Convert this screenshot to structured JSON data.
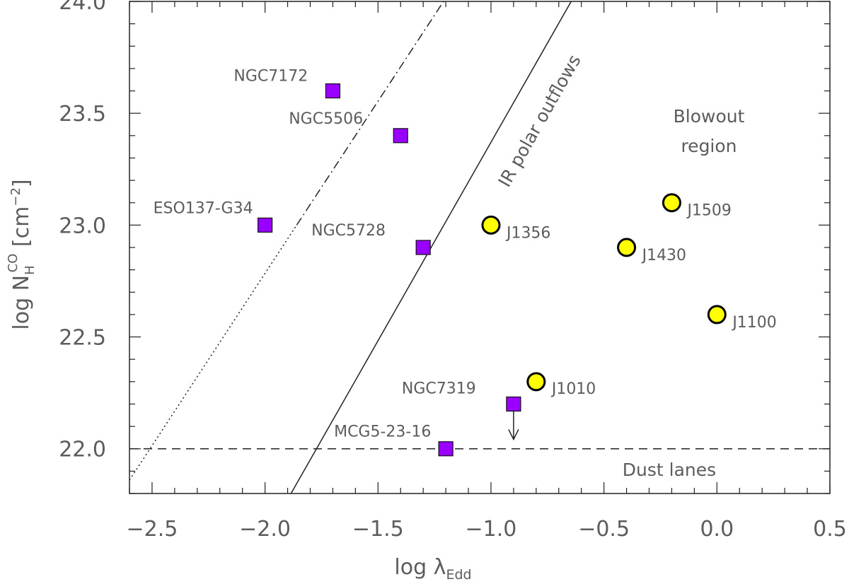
{
  "chart_data": {
    "type": "scatter",
    "xlabel": {
      "main": "log λ",
      "sub": "Edd"
    },
    "ylabel": {
      "main": "log N",
      "sub": "H",
      "sup": "CO",
      "unit": " [cm",
      "unit_sup": "−2",
      "unit_close": "]"
    },
    "xlim": [
      -2.6,
      0.5
    ],
    "ylim": [
      21.8,
      24.0
    ],
    "x_ticks": [
      -2.5,
      -2.0,
      -1.5,
      -1.0,
      -0.5,
      0.0,
      0.5
    ],
    "x_tick_labels": [
      "−2.5",
      "−2.0",
      "−1.5",
      "−1.0",
      "−0.5",
      "0.0",
      "0.5"
    ],
    "y_ticks": [
      22.0,
      22.5,
      23.0,
      23.5,
      24.0
    ],
    "y_tick_labels": [
      "22.0",
      "22.5",
      "23.0",
      "23.5",
      "24.0"
    ],
    "grid": false,
    "series": [
      {
        "marker": "square",
        "color": "#9900ff",
        "points": [
          {
            "label": "NGC7172",
            "x": -1.7,
            "y": 23.6
          },
          {
            "label": "NGC5506",
            "x": -1.4,
            "y": 23.4
          },
          {
            "label": "ESO137-G34",
            "x": -2.0,
            "y": 23.0
          },
          {
            "label": "NGC5728",
            "x": -1.3,
            "y": 22.9
          },
          {
            "label": "NGC7319",
            "x": -0.9,
            "y": 22.2,
            "upper_limit": true
          },
          {
            "label": "MCG5-23-16",
            "x": -1.2,
            "y": 22.0
          }
        ]
      },
      {
        "marker": "circle",
        "color": "#ffff00",
        "points": [
          {
            "label": "J1356",
            "x": -1.0,
            "y": 23.0
          },
          {
            "label": "J1509",
            "x": -0.2,
            "y": 23.1
          },
          {
            "label": "J1430",
            "x": -0.4,
            "y": 22.9
          },
          {
            "label": "J1100",
            "x": 0.0,
            "y": 22.6
          },
          {
            "label": "J1010",
            "x": -0.8,
            "y": 22.3
          }
        ]
      }
    ],
    "lines": [
      {
        "style": "dashed",
        "y": 22.0
      },
      {
        "style": "solid",
        "from": [
          -1.885,
          21.8
        ],
        "to": [
          -0.645,
          24.0
        ]
      },
      {
        "style": "dotted",
        "from": [
          -2.6,
          21.86
        ],
        "to": [
          -1.86,
          23.0
        ]
      },
      {
        "style": "dash-dot",
        "from": [
          -1.86,
          23.0
        ],
        "to": [
          -1.21,
          24.0
        ]
      }
    ],
    "annotations": {
      "blowout_line1": "Blowout",
      "blowout_line2": "region",
      "dust_lanes": "Dust lanes",
      "ir_outflows": "IR polar outflows"
    }
  }
}
